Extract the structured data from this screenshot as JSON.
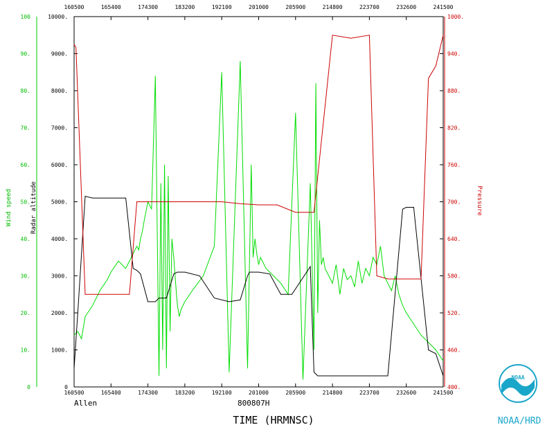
{
  "chart_data": {
    "type": "line",
    "storm_label": "Allen",
    "flight_id": "800807H",
    "xlabel": "TIME (HRMNSC)",
    "y_left_outer_label": "Wind speed",
    "y_left_inner_label": "Radar altitude",
    "y_right_label": "Pressure",
    "x_ticks": [
      "160500",
      "165400",
      "174300",
      "183200",
      "192100",
      "201000",
      "205900",
      "214800",
      "223700",
      "232600",
      "241500"
    ],
    "y_wind_ticks": [
      "0",
      "10.",
      "20.",
      "30.",
      "40.",
      "50.",
      "60.",
      "70.",
      "80.",
      "90.",
      "100"
    ],
    "y_alt_ticks": [
      "0",
      "1000.",
      "2000.",
      "3000.",
      "4000.",
      "5000.",
      "6000.",
      "7000.",
      "8000.",
      "9000.",
      "10000."
    ],
    "y_pres_ticks": [
      "400.",
      "460.",
      "520.",
      "580.",
      "640.",
      "700.",
      "760.",
      "820.",
      "880.",
      "940.",
      "1000."
    ],
    "wind_ylim": [
      0,
      100
    ],
    "alt_ylim": [
      0,
      10000
    ],
    "pres_ylim": [
      400,
      1000
    ],
    "x_index_range": [
      0,
      10
    ],
    "series": [
      {
        "name": "Wind speed",
        "color": "#00dd00",
        "x": [
          0,
          0.1,
          0.2,
          0.3,
          0.5,
          0.7,
          0.9,
          1.0,
          1.2,
          1.4,
          1.55,
          1.7,
          1.75,
          1.8,
          1.85,
          1.9,
          2.0,
          2.1,
          2.2,
          2.3,
          2.35,
          2.4,
          2.45,
          2.5,
          2.55,
          2.6,
          2.65,
          2.7,
          2.75,
          2.8,
          2.85,
          2.9,
          3.0,
          3.2,
          3.5,
          3.8,
          4.0,
          4.2,
          4.5,
          4.7,
          4.8,
          4.85,
          4.9,
          4.95,
          5.0,
          5.05,
          5.1,
          5.2,
          5.4,
          5.6,
          5.8,
          6.0,
          6.2,
          6.4,
          6.5,
          6.55,
          6.6,
          6.65,
          6.7,
          6.75,
          6.8,
          6.9,
          7.0,
          7.1,
          7.2,
          7.3,
          7.4,
          7.5,
          7.6,
          7.7,
          7.8,
          7.9,
          8.0,
          8.1,
          8.2,
          8.3,
          8.4,
          8.5,
          8.6,
          8.7,
          8.8,
          8.9,
          9.0,
          9.2,
          9.4,
          9.6,
          9.8,
          10.0
        ],
        "y": [
          14,
          15,
          13,
          19,
          22,
          26,
          29,
          31,
          34,
          32,
          35,
          38,
          37,
          40,
          42,
          45,
          50,
          48,
          84,
          3,
          55,
          10,
          60,
          5,
          57,
          15,
          40,
          35,
          28,
          22,
          19,
          21,
          23,
          26,
          30,
          38,
          85,
          4,
          88,
          5,
          60,
          35,
          40,
          36,
          33,
          35,
          34,
          32,
          30,
          28,
          25,
          74,
          2,
          55,
          10,
          82,
          20,
          45,
          33,
          35,
          32,
          30,
          28,
          33,
          25,
          32,
          29,
          30,
          27,
          34,
          28,
          32,
          30,
          35,
          33,
          38,
          30,
          28,
          26,
          30,
          25,
          22,
          20,
          17,
          14,
          12,
          10,
          7
        ]
      },
      {
        "name": "Radar altitude",
        "color": "#000000",
        "x": [
          0,
          0.1,
          0.3,
          0.5,
          0.8,
          1.0,
          1.2,
          1.4,
          1.6,
          1.7,
          1.75,
          1.8,
          2.0,
          2.2,
          2.3,
          2.5,
          2.7,
          2.8,
          3.0,
          3.4,
          3.8,
          4.2,
          4.5,
          4.7,
          4.75,
          4.9,
          5.0,
          5.3,
          5.6,
          5.9,
          6.4,
          6.5,
          6.6,
          6.7,
          6.9,
          7.3,
          7.7,
          8.1,
          8.5,
          8.9,
          9.0,
          9.2,
          9.6,
          9.8,
          10.0
        ],
        "y": [
          500,
          2000,
          5150,
          5100,
          5100,
          5100,
          5100,
          5100,
          3200,
          3150,
          3100,
          3050,
          2300,
          2300,
          2400,
          2400,
          3050,
          3100,
          3100,
          3000,
          2400,
          2300,
          2350,
          3000,
          3100,
          3100,
          3100,
          3050,
          2500,
          2500,
          3250,
          400,
          300,
          300,
          300,
          300,
          300,
          300,
          300,
          4800,
          4850,
          4850,
          1000,
          900,
          300
        ]
      },
      {
        "name": "Pressure",
        "color": "#cc0000",
        "x": [
          0,
          0.05,
          0.3,
          0.5,
          1.0,
          1.5,
          1.7,
          1.8,
          2.0,
          2.5,
          3.0,
          3.5,
          4.0,
          4.5,
          5.0,
          5.5,
          6.0,
          6.5,
          7.0,
          7.5,
          8.0,
          8.2,
          8.5,
          8.8,
          9.0,
          9.2,
          9.4,
          9.6,
          9.8,
          10.0
        ],
        "y": [
          955,
          950,
          550,
          550,
          550,
          550,
          700,
          700,
          700,
          700,
          700,
          700,
          700,
          697,
          695,
          695,
          683,
          683,
          970,
          965,
          970,
          580,
          575,
          575,
          575,
          575,
          575,
          900,
          920,
          970
        ]
      }
    ]
  },
  "logo": {
    "org": "NOAA/HRD",
    "badge_text": "NOAA",
    "color": "#1aa6c9"
  }
}
